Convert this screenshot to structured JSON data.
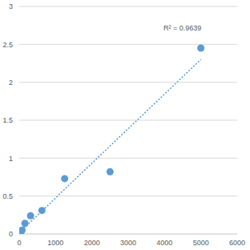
{
  "chart_data": {
    "type": "scatter",
    "annotation": "R² = 0.9639",
    "x": [
      0,
      39,
      78,
      156,
      312,
      625,
      1250,
      2500,
      5000
    ],
    "series": [
      {
        "type": "scatter",
        "color": "#5b9bd5",
        "marker": "circle",
        "values": [
          0.0,
          0.02,
          0.05,
          0.14,
          0.24,
          0.31,
          0.73,
          0.82,
          2.45
        ]
      },
      {
        "type": "line",
        "color": "#5b9bd5",
        "line_style": "dotted",
        "values": [
          0.02,
          0.04,
          0.06,
          0.09,
          0.16,
          0.3,
          0.59,
          1.16,
          2.3
        ]
      }
    ],
    "xlim": [
      0,
      6000
    ],
    "xticks": [
      0,
      1000,
      2000,
      3000,
      4000,
      5000,
      6000
    ],
    "ylim": [
      0,
      3
    ],
    "yticks": [
      0,
      0.5,
      1,
      1.5,
      2,
      2.5,
      3
    ],
    "grid": true
  }
}
